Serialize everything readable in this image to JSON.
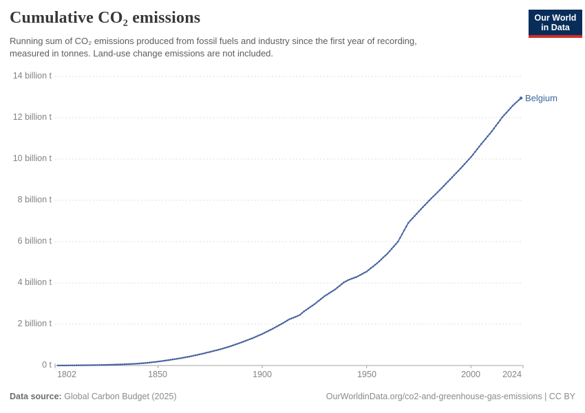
{
  "header": {
    "title": "Cumulative CO₂ emissions",
    "subtitle_line1": "Running sum of CO₂ emissions produced from fossil fuels and industry since the first year of recording,",
    "subtitle_line2": "measured in tonnes. Land-use change emissions are not included.",
    "logo_line1": "Our World",
    "logo_line2": "in Data",
    "logo_bg_color": "#082d5a",
    "logo_accent_color": "#cf2f28"
  },
  "chart_data": {
    "type": "line",
    "title": "Cumulative CO₂ emissions",
    "xlabel": "",
    "ylabel": "",
    "unit": "billion t",
    "xlim": [
      1802,
      2024
    ],
    "ylim": [
      0,
      14
    ],
    "grid": "horizontal-dashed",
    "legend_position": "end-of-line",
    "x_ticks": [
      1802,
      1850,
      1900,
      1950,
      2000,
      2024
    ],
    "x_tick_labels": [
      "1802",
      "1850",
      "1900",
      "1950",
      "2000",
      "2024"
    ],
    "y_ticks": [
      0,
      2,
      4,
      6,
      8,
      10,
      12,
      14
    ],
    "y_tick_labels": [
      "0 t",
      "2 billion t",
      "4 billion t",
      "6 billion t",
      "8 billion t",
      "10 billion t",
      "12 billion t",
      "14 billion t"
    ],
    "series": [
      {
        "name": "Belgium",
        "color": "#44639f",
        "label_color": "#3d649c",
        "points": [
          [
            1802,
            0.002
          ],
          [
            1805,
            0.004
          ],
          [
            1810,
            0.008
          ],
          [
            1815,
            0.013
          ],
          [
            1820,
            0.02
          ],
          [
            1825,
            0.03
          ],
          [
            1830,
            0.045
          ],
          [
            1835,
            0.065
          ],
          [
            1840,
            0.09
          ],
          [
            1845,
            0.13
          ],
          [
            1850,
            0.19
          ],
          [
            1855,
            0.26
          ],
          [
            1860,
            0.34
          ],
          [
            1865,
            0.43
          ],
          [
            1870,
            0.54
          ],
          [
            1875,
            0.66
          ],
          [
            1880,
            0.79
          ],
          [
            1885,
            0.94
          ],
          [
            1890,
            1.12
          ],
          [
            1895,
            1.31
          ],
          [
            1900,
            1.53
          ],
          [
            1905,
            1.78
          ],
          [
            1910,
            2.06
          ],
          [
            1913,
            2.24
          ],
          [
            1916,
            2.36
          ],
          [
            1918,
            2.45
          ],
          [
            1920,
            2.62
          ],
          [
            1925,
            2.97
          ],
          [
            1930,
            3.37
          ],
          [
            1935,
            3.69
          ],
          [
            1939,
            4.02
          ],
          [
            1941,
            4.13
          ],
          [
            1943,
            4.21
          ],
          [
            1945,
            4.28
          ],
          [
            1948,
            4.44
          ],
          [
            1950,
            4.55
          ],
          [
            1955,
            4.95
          ],
          [
            1960,
            5.42
          ],
          [
            1965,
            5.99
          ],
          [
            1970,
            6.91
          ],
          [
            1975,
            7.46
          ],
          [
            1980,
            7.99
          ],
          [
            1985,
            8.49
          ],
          [
            1990,
            9.01
          ],
          [
            1995,
            9.54
          ],
          [
            2000,
            10.09
          ],
          [
            2005,
            10.73
          ],
          [
            2010,
            11.34
          ],
          [
            2015,
            12.02
          ],
          [
            2020,
            12.58
          ],
          [
            2024,
            12.95
          ]
        ]
      }
    ]
  },
  "footer": {
    "source_label": "Data source:",
    "source_text": "Global Carbon Budget (2025)",
    "link": "OurWorldinData.org/co2-and-greenhouse-gas-emissions | CC BY"
  }
}
